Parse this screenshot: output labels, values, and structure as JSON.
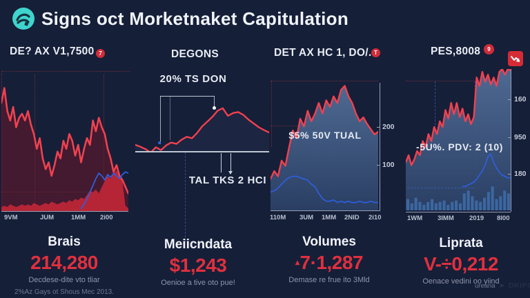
{
  "title": {
    "text": "Signs oct Morketnaket Capitulation"
  },
  "icons": {
    "logo": "app-logo",
    "up_triangle": "▴",
    "watermark_glyph": "➤"
  },
  "colors": {
    "red": "#f1414f",
    "blue": "#2e5fdd",
    "p1_fill": "rgba(112,22,40,0.5)",
    "p1_area2": "#bf2637",
    "p2_fill": "rgba(28,38,66,0.95)",
    "slate_top": "#54719c",
    "slate_bottom": "#2b4065",
    "bar": "#3e6ca6",
    "badge": "#d02c39",
    "teal": "#3fd4cd",
    "value_red": "#e0303e"
  },
  "panels": [
    {
      "header": "DE? AX V1,7500",
      "badge": "7",
      "stats": {
        "title": "Brais",
        "value": "214,280",
        "caption": "Decdese-dite vto tliar",
        "footnote": "2%Az Gays ot Shous Mec 2013."
      }
    },
    {
      "header": "DEGONS",
      "stats": {
        "title": "Meiicndata",
        "value": "$1,243",
        "caption": "Oenioe a tive oto pue!"
      }
    },
    {
      "header": "DET AX HC 1, DO/.",
      "badge": "T",
      "stats": {
        "title": "Volumes",
        "value": "7·1,287",
        "caption": "Demase re frue ito 3Mld"
      }
    },
    {
      "header": "PES,8008",
      "badge": "9",
      "stats": {
        "title": "Liprata",
        "value": "V-÷0,212",
        "caption": "Oenace vedini oo yiind"
      }
    }
  ],
  "watermark": {
    "text": "ureana",
    "brand": "DKIPO"
  },
  "chart_data": [
    {
      "type": "area",
      "title": "DE? AX V1,7500",
      "x_labels": [
        "9VM",
        "JUM",
        "1MM",
        "2i00"
      ],
      "ylim": [
        0,
        100
      ],
      "grid": "dotted-red",
      "series": [
        {
          "name": "price",
          "color": "#f1414f",
          "values": [
            80,
            91,
            74,
            67,
            77,
            62,
            69,
            72,
            67,
            74,
            64,
            57,
            46,
            54,
            39,
            31,
            36,
            26,
            34,
            44,
            39,
            52,
            46,
            57,
            52,
            41,
            49,
            36,
            46,
            54,
            49,
            67,
            59,
            69,
            62,
            57,
            46,
            39,
            29,
            34,
            26,
            23,
            18,
            13
          ]
        },
        {
          "name": "secondary",
          "color": "#bf2637",
          "values": [
            3,
            4,
            3,
            5,
            4,
            3,
            4,
            5,
            4,
            5,
            4,
            6,
            5,
            4,
            5,
            6,
            5,
            7,
            6,
            5,
            6,
            7,
            6,
            8,
            7,
            9,
            8,
            10,
            9,
            12,
            15,
            14,
            16,
            13,
            18,
            22,
            26,
            24,
            28,
            30,
            26,
            22,
            4,
            2
          ]
        },
        {
          "name": "signal",
          "color": "#2e5fdd",
          "values": [
            null,
            null,
            null,
            null,
            null,
            null,
            null,
            null,
            null,
            null,
            null,
            null,
            null,
            null,
            null,
            null,
            null,
            null,
            null,
            null,
            null,
            null,
            null,
            null,
            null,
            null,
            null,
            2,
            5,
            9,
            14,
            19,
            24,
            28,
            26,
            23,
            27,
            25,
            28,
            26,
            24,
            27,
            29,
            28
          ]
        }
      ]
    },
    {
      "type": "area",
      "title": "DEGONS",
      "annotations": [
        "20% TS DON",
        "TAL TKS 2 HCI"
      ],
      "ylim": [
        0,
        100
      ],
      "series": [
        {
          "name": "price",
          "color": "#f1414f",
          "values": [
            13,
            9,
            4,
            -3,
            8,
            2,
            12,
            18,
            15,
            24,
            30,
            27,
            38,
            52,
            62,
            72,
            85,
            90,
            74,
            80,
            82,
            76,
            66,
            58,
            50,
            44,
            39
          ]
        }
      ]
    },
    {
      "type": "area",
      "title": "DET AX HC 1, DO/.",
      "annotation": "$5% 50V TUAL",
      "x_labels": [
        "110M",
        "3UM",
        "1MM",
        "2NID",
        "2i10"
      ],
      "y_labels": [
        "200",
        "100"
      ],
      "ylim": [
        0,
        100
      ],
      "series": [
        {
          "name": "price",
          "color": "#f1414f",
          "values": [
            24,
            30,
            26,
            38,
            34,
            48,
            61,
            55,
            70,
            64,
            76,
            68,
            74,
            82,
            74,
            84,
            79,
            87,
            82,
            92,
            95,
            87,
            82,
            74,
            68,
            71,
            66,
            62,
            58,
            60
          ]
        },
        {
          "name": "signal",
          "color": "#2e5fdd",
          "values": [
            14,
            15,
            17,
            20,
            23,
            25,
            26,
            26,
            25,
            24,
            23,
            20,
            18,
            13,
            9,
            7,
            7,
            8,
            6,
            7,
            6,
            7,
            6,
            6,
            7,
            6,
            6,
            7,
            6,
            6
          ]
        }
      ]
    },
    {
      "type": "area",
      "title": "PES,8008",
      "annotation": "-5U%. PDV: 2 (10)",
      "x_labels": [
        "1WM",
        "3IMM",
        "2019",
        "8I00"
      ],
      "y_labels": [
        "160",
        "950",
        "180"
      ],
      "ylim": [
        0,
        100
      ],
      "series": [
        {
          "name": "price",
          "color": "#f1414f",
          "values": [
            34,
            39,
            32,
            36,
            42,
            39,
            49,
            45,
            54,
            49,
            59,
            54,
            63,
            59,
            71,
            65,
            76,
            68,
            76,
            66,
            72,
            63,
            68,
            61,
            66,
            94,
            88,
            98,
            91,
            96,
            89,
            94,
            88,
            98,
            100,
            96,
            100,
            99
          ]
        },
        {
          "name": "signal",
          "color": "#2e5fdd",
          "values": [
            null,
            null,
            null,
            null,
            null,
            null,
            null,
            null,
            null,
            null,
            null,
            null,
            null,
            null,
            null,
            null,
            null,
            null,
            null,
            null,
            17,
            17,
            18,
            19,
            20,
            22,
            25,
            28,
            32,
            38,
            40,
            34,
            30,
            27,
            25,
            24,
            23,
            23
          ]
        },
        {
          "name": "volume",
          "color": "#3e6ca6",
          "values": [
            8,
            5,
            9,
            6,
            4,
            6,
            8,
            5,
            6,
            7,
            4,
            6,
            7,
            5,
            12,
            14,
            10,
            7,
            6,
            9,
            13,
            17,
            8,
            10,
            14,
            12
          ]
        }
      ]
    }
  ]
}
